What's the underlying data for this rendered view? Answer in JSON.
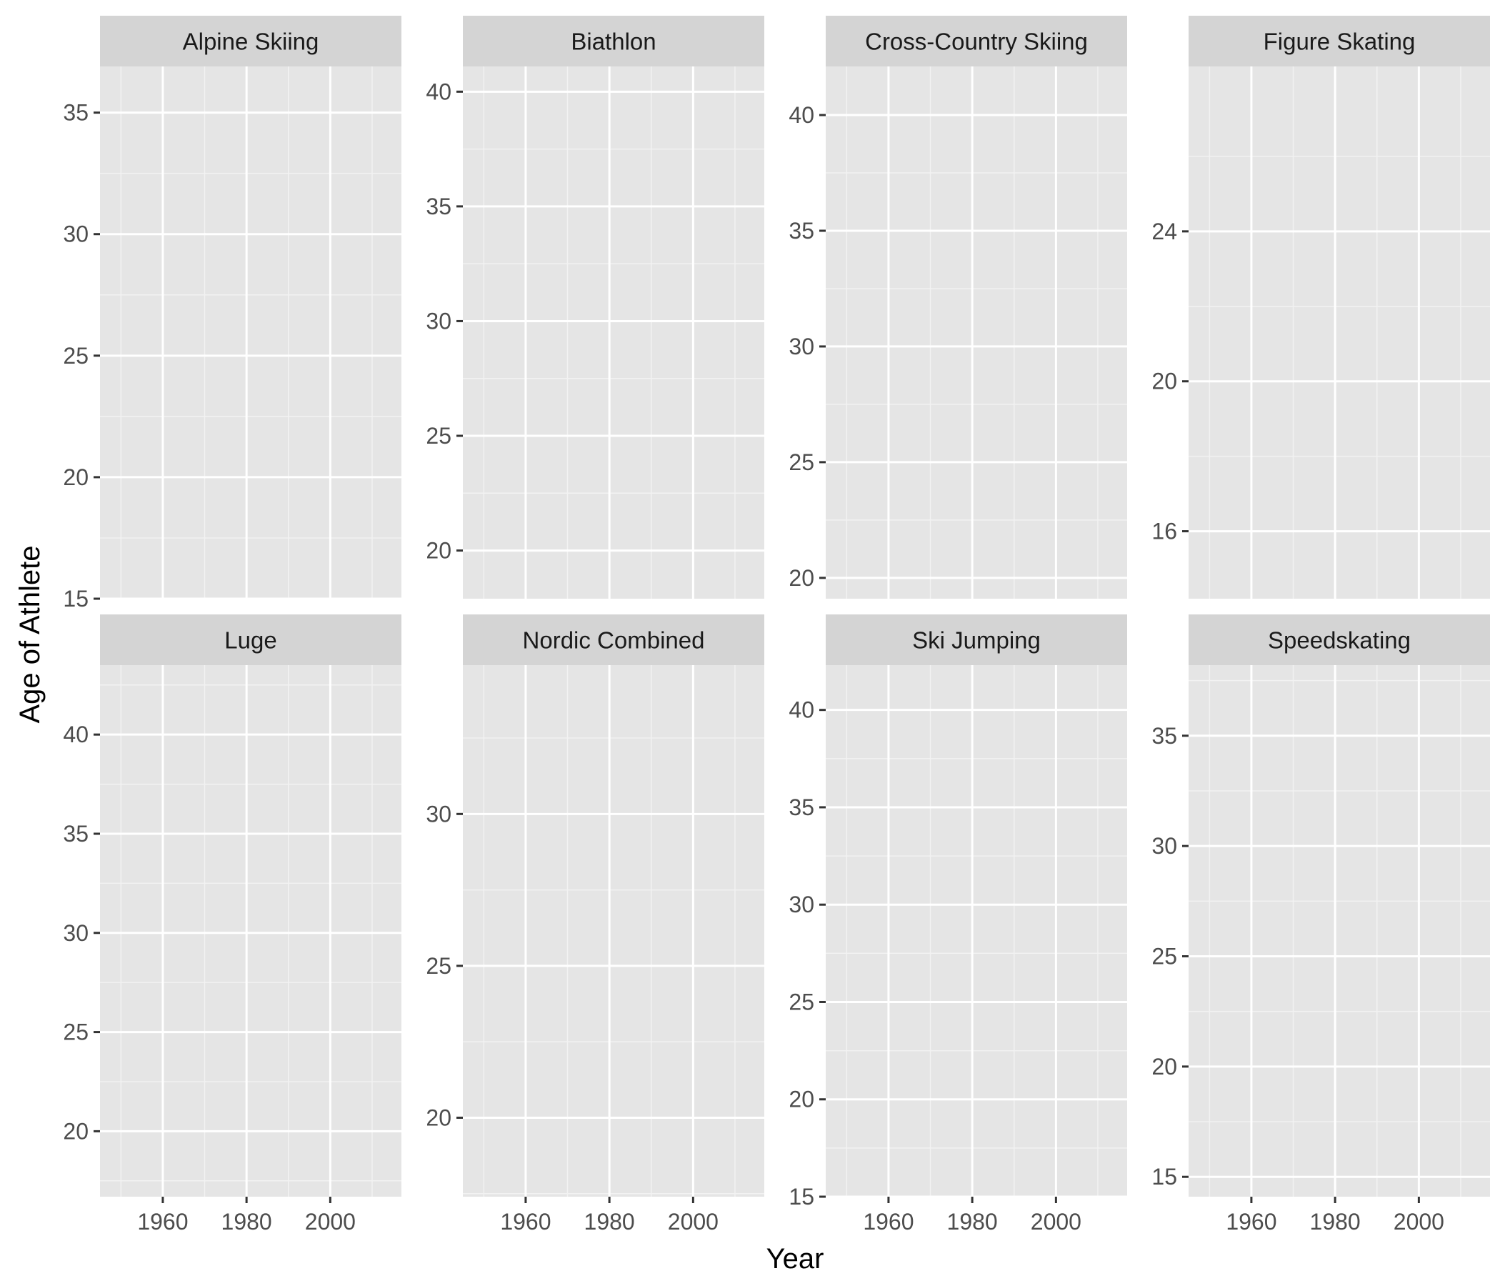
{
  "chart_data": {
    "type": "scatter",
    "layout": "facet_wrap",
    "ncol": 4,
    "xlabel": "Year",
    "ylabel": "Age of Athlete",
    "grid": true,
    "colors": {
      "panel_background": "#e5e5e5",
      "strip_background": "#d4d4d4",
      "grid_major": "#ffffff",
      "grid_minor": "#f2f2f2"
    },
    "x_ticks": [
      1960,
      1980,
      2000
    ],
    "x_minor_ticks": [
      1950,
      1970,
      1990,
      2010
    ],
    "xlim": [
      1945,
      2017
    ],
    "panels": [
      {
        "title": "Alpine Skiing",
        "ylim": [
          15,
          36.9
        ],
        "y_ticks": [
          15,
          20,
          25,
          30,
          35
        ],
        "y_minor_ticks": [
          17.5,
          22.5,
          27.5,
          32.5
        ]
      },
      {
        "title": "Biathlon",
        "ylim": [
          17.9,
          41.1
        ],
        "y_ticks": [
          20,
          25,
          30,
          35,
          40
        ],
        "y_minor_ticks": [
          17.5,
          22.5,
          27.5,
          32.5,
          37.5
        ]
      },
      {
        "title": "Cross-Country Skiing",
        "ylim": [
          19.1,
          42.1
        ],
        "y_ticks": [
          20,
          25,
          30,
          35,
          40
        ],
        "y_minor_ticks": [
          22.5,
          27.5,
          32.5,
          37.5,
          42.5
        ]
      },
      {
        "title": "Figure Skating",
        "ylim": [
          14.2,
          28.4
        ],
        "y_ticks": [
          16,
          20,
          24
        ],
        "y_minor_ticks": [
          14,
          18,
          22,
          26
        ]
      },
      {
        "title": "Luge",
        "ylim": [
          16.7,
          43.5
        ],
        "y_ticks": [
          20,
          25,
          30,
          35,
          40
        ],
        "y_minor_ticks": [
          17.5,
          22.5,
          27.5,
          32.5,
          37.5,
          42.5
        ]
      },
      {
        "title": "Nordic Combined",
        "ylim": [
          17.4,
          34.9
        ],
        "y_ticks": [
          20,
          25,
          30
        ],
        "y_minor_ticks": [
          17.5,
          22.5,
          27.5,
          32.5
        ]
      },
      {
        "title": "Ski Jumping",
        "ylim": [
          15,
          42.3
        ],
        "y_ticks": [
          15,
          20,
          25,
          30,
          35,
          40
        ],
        "y_minor_ticks": [
          17.5,
          22.5,
          27.5,
          32.5,
          37.5,
          42.5
        ]
      },
      {
        "title": "Speedskating",
        "ylim": [
          14.1,
          38.2
        ],
        "y_ticks": [
          15,
          20,
          25,
          30,
          35
        ],
        "y_minor_ticks": [
          17.5,
          22.5,
          27.5,
          32.5,
          37.5
        ]
      }
    ]
  }
}
